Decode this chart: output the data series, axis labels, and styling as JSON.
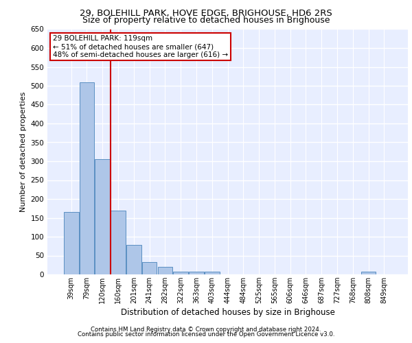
{
  "title1": "29, BOLEHILL PARK, HOVE EDGE, BRIGHOUSE, HD6 2RS",
  "title2": "Size of property relative to detached houses in Brighouse",
  "xlabel": "Distribution of detached houses by size in Brighouse",
  "ylabel": "Number of detached properties",
  "categories": [
    "39sqm",
    "79sqm",
    "120sqm",
    "160sqm",
    "201sqm",
    "241sqm",
    "282sqm",
    "322sqm",
    "363sqm",
    "403sqm",
    "444sqm",
    "484sqm",
    "525sqm",
    "565sqm",
    "606sqm",
    "646sqm",
    "687sqm",
    "727sqm",
    "768sqm",
    "808sqm",
    "849sqm"
  ],
  "values": [
    165,
    510,
    305,
    170,
    78,
    32,
    20,
    8,
    8,
    8,
    0,
    0,
    0,
    0,
    0,
    0,
    0,
    0,
    0,
    8,
    0
  ],
  "bar_color": "#aec6e8",
  "bar_edgecolor": "#5a8fc2",
  "vline_x": 2.5,
  "vline_color": "#cc0000",
  "annotation_text": "29 BOLEHILL PARK: 119sqm\n← 51% of detached houses are smaller (647)\n48% of semi-detached houses are larger (616) →",
  "annotation_box_color": "#cc0000",
  "ylim": [
    0,
    650
  ],
  "yticks": [
    0,
    50,
    100,
    150,
    200,
    250,
    300,
    350,
    400,
    450,
    500,
    550,
    600,
    650
  ],
  "footer1": "Contains HM Land Registry data © Crown copyright and database right 2024.",
  "footer2": "Contains public sector information licensed under the Open Government Licence v3.0.",
  "background_color": "#e8eeff",
  "grid_color": "#ffffff",
  "fig_bg": "#ffffff"
}
